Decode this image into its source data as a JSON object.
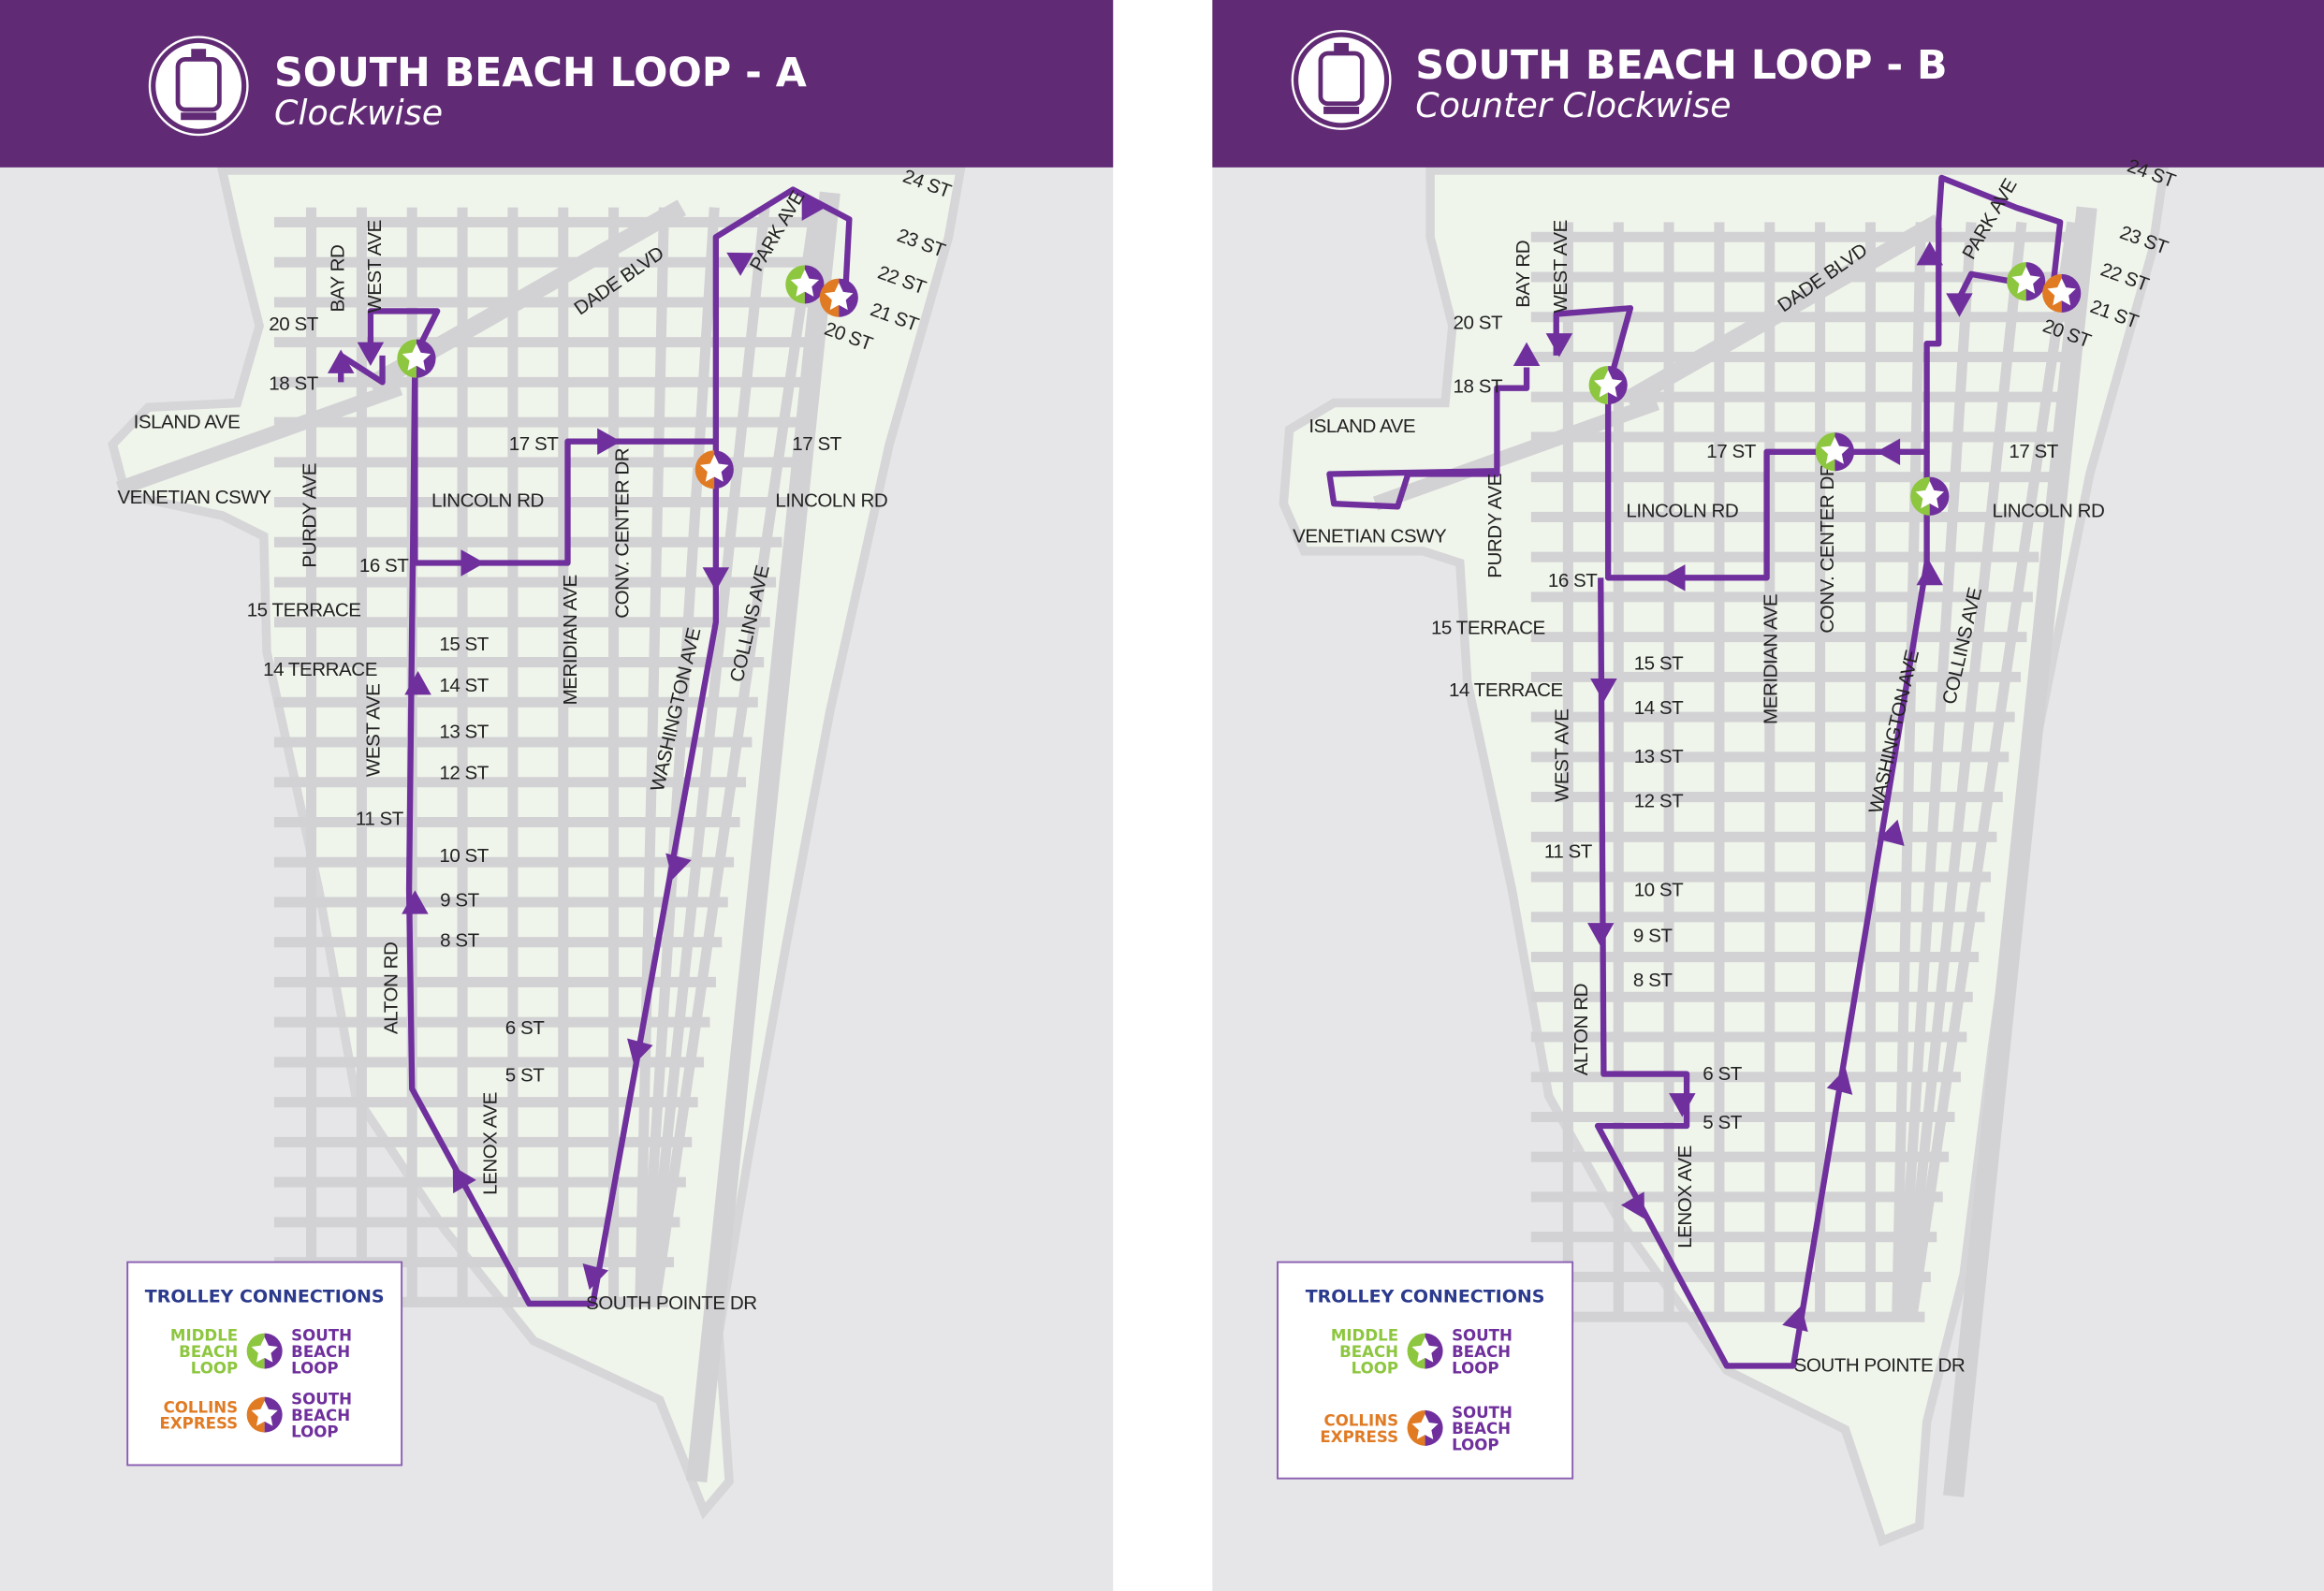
{
  "colors": {
    "header": "#612a74",
    "background": "#e6e6e8",
    "land": "#f0f5ec",
    "streets": "#d2d2d4",
    "route": "#6f2f9c",
    "middle_beach_loop": "#8dc63f",
    "collins_express": "#e07b24",
    "legend_title": "#2b3a8c"
  },
  "panels": [
    {
      "title": "SOUTH BEACH LOOP - A",
      "subtitle": "Clockwise",
      "icon": "trolley-icon",
      "legend": {
        "title": "TROLLEY CONNECTIONS",
        "rows": [
          {
            "left": [
              "MIDDLE",
              "BEACH",
              "LOOP"
            ],
            "right": [
              "SOUTH",
              "BEACH",
              "LOOP"
            ],
            "left_color": "middle_beach_loop"
          },
          {
            "left": [
              "COLLINS",
              "EXPRESS"
            ],
            "right": [
              "SOUTH",
              "BEACH",
              "LOOP"
            ],
            "left_color": "collins_express"
          }
        ]
      },
      "street_labels": [
        "BAY RD",
        "WEST AVE",
        "20 ST",
        "18 ST",
        "ISLAND AVE",
        "VENETIAN CSWY",
        "PURDY AVE",
        "LINCOLN RD",
        "17 ST",
        "16 ST",
        "15 TERRACE",
        "14 TERRACE",
        "15 ST",
        "14 ST",
        "13 ST",
        "12 ST",
        "WEST AVE",
        "11 ST",
        "10 ST",
        "9 ST",
        "8 ST",
        "ALTON RD",
        "6 ST",
        "5 ST",
        "LENOX AVE",
        "SOUTH POINTE DR",
        "MERIDIAN AVE",
        "CONV. CENTER DR",
        "WASHINGTON AVE",
        "COLLINS AVE",
        "17 ST",
        "LINCOLN RD",
        "DADE BLVD",
        "PARK AVE",
        "24 ST",
        "23 ST",
        "22 ST",
        "21 ST",
        "20 ST"
      ]
    },
    {
      "title": "SOUTH BEACH LOOP - B",
      "subtitle": "Counter Clockwise",
      "icon": "trolley-icon",
      "legend": {
        "title": "TROLLEY CONNECTIONS",
        "rows": [
          {
            "left": [
              "MIDDLE",
              "BEACH",
              "LOOP"
            ],
            "right": [
              "SOUTH",
              "BEACH",
              "LOOP"
            ],
            "left_color": "middle_beach_loop"
          },
          {
            "left": [
              "COLLINS",
              "EXPRESS"
            ],
            "right": [
              "SOUTH",
              "BEACH",
              "LOOP"
            ],
            "left_color": "collins_express"
          }
        ]
      },
      "street_labels": [
        "BAY RD",
        "WEST AVE",
        "20 ST",
        "18 ST",
        "ISLAND AVE",
        "VENETIAN CSWY",
        "PURDY AVE",
        "17 ST",
        "LINCOLN RD",
        "16 ST",
        "15 TERRACE",
        "14 TERRACE",
        "15 ST",
        "14 ST",
        "13 ST",
        "12 ST",
        "WEST AVE",
        "11 ST",
        "10 ST",
        "9 ST",
        "8 ST",
        "ALTON RD",
        "6 ST",
        "5 ST",
        "LENOX AVE",
        "SOUTH POINTE DR",
        "MERIDIAN AVE",
        "CONV. CENTER DR",
        "WASHINGTON AVE",
        "COLLINS AVE",
        "17 ST",
        "LINCOLN RD",
        "DADE BLVD",
        "PARK AVE",
        "24 ST",
        "23 ST",
        "22 ST",
        "21 ST",
        "20 ST"
      ]
    }
  ]
}
